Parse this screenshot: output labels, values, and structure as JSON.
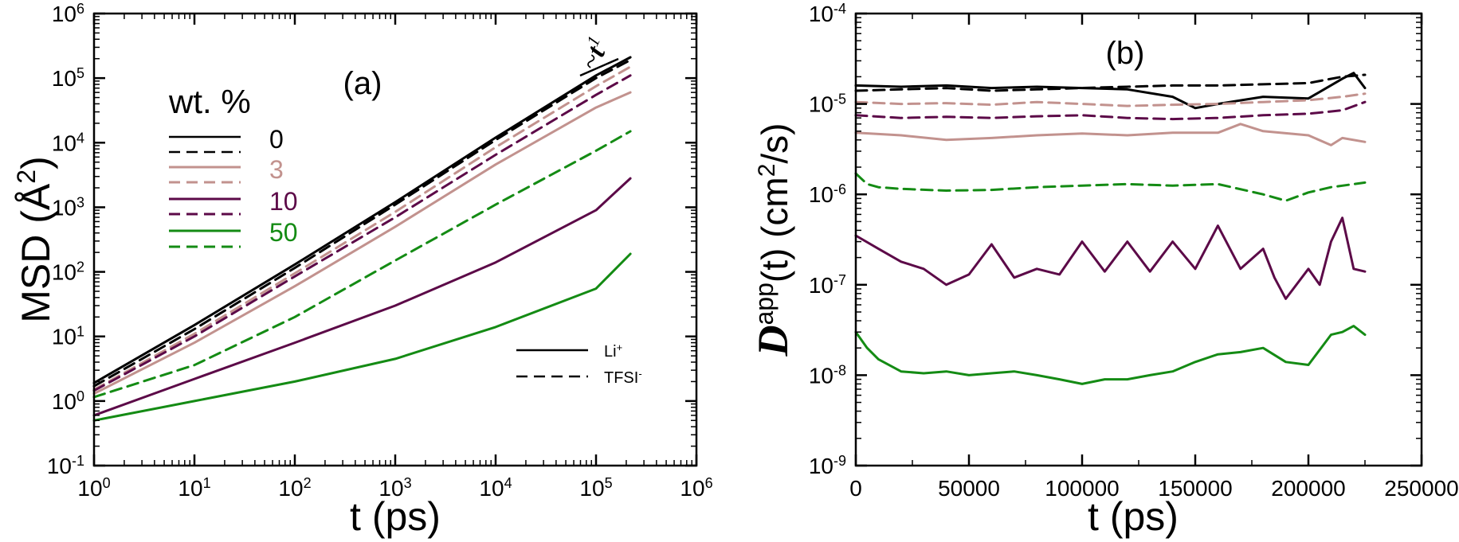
{
  "colors": {
    "w0": "#000000",
    "w3": "#c2928e",
    "w10": "#5c0a48",
    "w50": "#148b14"
  },
  "chart_data": [
    {
      "id": "a",
      "type": "line",
      "panel_label": "(a)",
      "xlabel": "t (ps)",
      "ylabel": {
        "base": "MSD (",
        "symbol": "Å",
        "sup": "2",
        "close": ")"
      },
      "xscale": "log",
      "yscale": "log",
      "xlim": [
        1,
        1000000
      ],
      "ylim": [
        0.1,
        1000000
      ],
      "xticks": [
        {
          "value": 1,
          "base": "10",
          "exp": "0"
        },
        {
          "value": 10,
          "base": "10",
          "exp": "1"
        },
        {
          "value": 100,
          "base": "10",
          "exp": "2"
        },
        {
          "value": 1000,
          "base": "10",
          "exp": "3"
        },
        {
          "value": 10000,
          "base": "10",
          "exp": "4"
        },
        {
          "value": 100000,
          "base": "10",
          "exp": "5"
        },
        {
          "value": 1000000,
          "base": "10",
          "exp": "6"
        }
      ],
      "yticks": [
        {
          "value": 0.1,
          "base": "10",
          "exp": "-1"
        },
        {
          "value": 1,
          "base": "10",
          "exp": "0"
        },
        {
          "value": 10,
          "base": "10",
          "exp": "1"
        },
        {
          "value": 100,
          "base": "10",
          "exp": "2"
        },
        {
          "value": 1000,
          "base": "10",
          "exp": "3"
        },
        {
          "value": 10000,
          "base": "10",
          "exp": "4"
        },
        {
          "value": 100000,
          "base": "10",
          "exp": "5"
        },
        {
          "value": 1000000,
          "base": "10",
          "exp": "6"
        }
      ],
      "legend": {
        "title": "wt. %",
        "entries": [
          {
            "label": "0",
            "color": "#000000"
          },
          {
            "label": "3",
            "color": "#c2928e"
          },
          {
            "label": "10",
            "color": "#5c0a48"
          },
          {
            "label": "50",
            "color": "#148b14"
          }
        ],
        "style_entries": [
          {
            "label": "Li",
            "sup": "+",
            "dash": false
          },
          {
            "label": "TFSI",
            "sup": "-",
            "dash": true
          }
        ]
      },
      "slope_annotation": {
        "prefix": "~",
        "symbol": "t",
        "exp": "1"
      },
      "series": [
        {
          "name": "0 wt.% Li+",
          "color": "#000000",
          "dash": false,
          "x": [
            1,
            10,
            100,
            1000,
            10000,
            100000,
            220000
          ],
          "y": [
            1.9,
            15,
            130,
            1200,
            12000,
            110000,
            210000
          ]
        },
        {
          "name": "0 wt.% TFSI-",
          "color": "#000000",
          "dash": true,
          "x": [
            1,
            10,
            100,
            1000,
            10000,
            100000,
            220000
          ],
          "y": [
            1.7,
            13,
            115,
            1100,
            11000,
            100000,
            190000
          ]
        },
        {
          "name": "3 wt.% Li+",
          "color": "#c2928e",
          "dash": false,
          "x": [
            1,
            10,
            100,
            1000,
            10000,
            100000,
            220000
          ],
          "y": [
            1.3,
            8,
            60,
            500,
            4600,
            35000,
            60000
          ]
        },
        {
          "name": "3 wt.% TFSI-",
          "color": "#c2928e",
          "dash": true,
          "x": [
            1,
            10,
            100,
            1000,
            10000,
            100000,
            220000
          ],
          "y": [
            1.5,
            11,
            95,
            850,
            8500,
            75000,
            150000
          ]
        },
        {
          "name": "10 wt.% Li+",
          "color": "#5c0a48",
          "dash": false,
          "x": [
            1,
            10,
            100,
            1000,
            10000,
            100000,
            220000
          ],
          "y": [
            0.6,
            2.2,
            8,
            30,
            140,
            900,
            2800
          ]
        },
        {
          "name": "10 wt.% TFSI-",
          "color": "#5c0a48",
          "dash": true,
          "x": [
            1,
            10,
            100,
            1000,
            10000,
            100000,
            220000
          ],
          "y": [
            1.45,
            10,
            85,
            700,
            6500,
            55000,
            110000
          ]
        },
        {
          "name": "50 wt.% Li+",
          "color": "#148b14",
          "dash": false,
          "x": [
            1,
            10,
            100,
            1000,
            10000,
            100000,
            220000
          ],
          "y": [
            0.5,
            1.0,
            2.0,
            4.5,
            14,
            55,
            190
          ]
        },
        {
          "name": "50 wt.% TFSI-",
          "color": "#148b14",
          "dash": true,
          "x": [
            1,
            10,
            100,
            1000,
            10000,
            100000,
            220000
          ],
          "y": [
            1.15,
            3.6,
            20,
            150,
            1100,
            7500,
            15000
          ]
        }
      ]
    },
    {
      "id": "b",
      "type": "line",
      "panel_label": "(b)",
      "xlabel": "t (ps)",
      "ylabel": {
        "symbol": "D",
        "sup": "app",
        "rest": "(t)  (cm",
        "unit_sup": "2",
        "close": "/s)"
      },
      "xscale": "linear",
      "yscale": "log",
      "xlim": [
        0,
        250000
      ],
      "ylim": [
        1e-09,
        0.0001
      ],
      "xticks": [
        {
          "value": 0,
          "label": "0"
        },
        {
          "value": 50000,
          "label": "50000"
        },
        {
          "value": 100000,
          "label": "100000"
        },
        {
          "value": 150000,
          "label": "150000"
        },
        {
          "value": 200000,
          "label": "200000"
        },
        {
          "value": 250000,
          "label": "250000"
        }
      ],
      "yticks": [
        {
          "value": 1e-09,
          "base": "10",
          "exp": "-9"
        },
        {
          "value": 1e-08,
          "base": "10",
          "exp": "-8"
        },
        {
          "value": 1e-07,
          "base": "10",
          "exp": "-7"
        },
        {
          "value": 1e-06,
          "base": "10",
          "exp": "-6"
        },
        {
          "value": 1e-05,
          "base": "10",
          "exp": "-5"
        },
        {
          "value": 0.0001,
          "base": "10",
          "exp": "-4"
        }
      ],
      "series": [
        {
          "name": "0 wt.% Li+",
          "color": "#000000",
          "dash": false,
          "x": [
            0,
            20000,
            40000,
            60000,
            80000,
            100000,
            120000,
            140000,
            150000,
            160000,
            180000,
            200000,
            215000,
            220000,
            225000
          ],
          "y": [
            1.6e-05,
            1.55e-05,
            1.6e-05,
            1.5e-05,
            1.55e-05,
            1.5e-05,
            1.45e-05,
            1.2e-05,
            9e-06,
            1e-05,
            1.2e-05,
            1.15e-05,
            1.9e-05,
            2.2e-05,
            1.5e-05
          ]
        },
        {
          "name": "0 wt.% TFSI-",
          "color": "#000000",
          "dash": true,
          "x": [
            0,
            20000,
            40000,
            60000,
            80000,
            100000,
            120000,
            140000,
            160000,
            180000,
            200000,
            215000,
            225000
          ],
          "y": [
            1.4e-05,
            1.45e-05,
            1.5e-05,
            1.4e-05,
            1.45e-05,
            1.5e-05,
            1.55e-05,
            1.6e-05,
            1.6e-05,
            1.65e-05,
            1.7e-05,
            2e-05,
            2.1e-05
          ]
        },
        {
          "name": "3 wt.% Li+",
          "color": "#c2928e",
          "dash": false,
          "x": [
            0,
            20000,
            40000,
            60000,
            80000,
            100000,
            120000,
            140000,
            160000,
            170000,
            180000,
            200000,
            210000,
            215000,
            225000
          ],
          "y": [
            4.8e-06,
            4.5e-06,
            4e-06,
            4.2e-06,
            4.5e-06,
            4.7e-06,
            4.5e-06,
            4.8e-06,
            4.8e-06,
            6e-06,
            5e-06,
            4.5e-06,
            3.5e-06,
            4.2e-06,
            3.8e-06
          ]
        },
        {
          "name": "3 wt.% TFSI-",
          "color": "#c2928e",
          "dash": true,
          "x": [
            0,
            20000,
            40000,
            60000,
            80000,
            100000,
            120000,
            140000,
            160000,
            180000,
            200000,
            215000,
            225000
          ],
          "y": [
            1.05e-05,
            1e-05,
            1.02e-05,
            9.8e-06,
            1.05e-05,
            1e-05,
            9.5e-06,
            9.8e-06,
            1e-05,
            1.05e-05,
            1.1e-05,
            1.2e-05,
            1.3e-05
          ]
        },
        {
          "name": "10 wt.% Li+",
          "color": "#5c0a48",
          "dash": false,
          "x": [
            0,
            10000,
            20000,
            30000,
            40000,
            50000,
            60000,
            70000,
            80000,
            90000,
            100000,
            110000,
            120000,
            130000,
            140000,
            150000,
            160000,
            170000,
            180000,
            185000,
            190000,
            200000,
            205000,
            210000,
            215000,
            220000,
            225000
          ],
          "y": [
            3.5e-07,
            2.5e-07,
            1.8e-07,
            1.5e-07,
            1e-07,
            1.3e-07,
            2.8e-07,
            1.2e-07,
            1.5e-07,
            1.3e-07,
            3e-07,
            1.4e-07,
            3e-07,
            1.4e-07,
            3e-07,
            1.5e-07,
            4.5e-07,
            1.5e-07,
            2.5e-07,
            1.2e-07,
            7e-08,
            1.5e-07,
            1e-07,
            3e-07,
            5.5e-07,
            1.5e-07,
            1.4e-07
          ]
        },
        {
          "name": "10 wt.% TFSI-",
          "color": "#5c0a48",
          "dash": true,
          "x": [
            0,
            20000,
            40000,
            60000,
            80000,
            100000,
            120000,
            140000,
            160000,
            180000,
            200000,
            215000,
            225000
          ],
          "y": [
            7.5e-06,
            7e-06,
            7.2e-06,
            7e-06,
            7.3e-06,
            7.5e-06,
            7e-06,
            6.8e-06,
            7e-06,
            7.5e-06,
            7.8e-06,
            8.5e-06,
            1.05e-05
          ]
        },
        {
          "name": "50 wt.% Li+",
          "color": "#148b14",
          "dash": false,
          "x": [
            0,
            5000,
            10000,
            20000,
            30000,
            40000,
            50000,
            60000,
            70000,
            80000,
            90000,
            100000,
            110000,
            120000,
            130000,
            140000,
            150000,
            160000,
            170000,
            180000,
            190000,
            200000,
            210000,
            215000,
            220000,
            225000
          ],
          "y": [
            3e-08,
            2e-08,
            1.5e-08,
            1.1e-08,
            1.05e-08,
            1.1e-08,
            1e-08,
            1.05e-08,
            1.1e-08,
            1e-08,
            9e-09,
            8e-09,
            9e-09,
            9e-09,
            1e-08,
            1.1e-08,
            1.4e-08,
            1.7e-08,
            1.8e-08,
            2e-08,
            1.4e-08,
            1.3e-08,
            2.8e-08,
            3e-08,
            3.5e-08,
            2.8e-08
          ]
        },
        {
          "name": "50 wt.% TFSI-",
          "color": "#148b14",
          "dash": true,
          "x": [
            0,
            5000,
            10000,
            20000,
            40000,
            60000,
            80000,
            100000,
            120000,
            140000,
            160000,
            180000,
            190000,
            200000,
            210000,
            225000
          ],
          "y": [
            1.7e-06,
            1.3e-06,
            1.2e-06,
            1.15e-06,
            1.1e-06,
            1.12e-06,
            1.2e-06,
            1.25e-06,
            1.3e-06,
            1.25e-06,
            1.3e-06,
            1e-06,
            8.5e-07,
            1.05e-06,
            1.2e-06,
            1.35e-06
          ]
        }
      ]
    }
  ]
}
